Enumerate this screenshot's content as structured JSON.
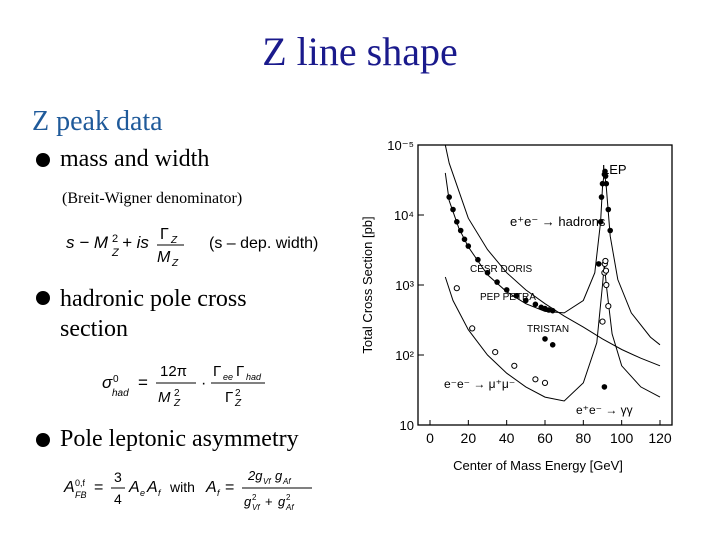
{
  "slide": {
    "title": "Z line shape",
    "subtitle": "Z peak data",
    "bullets": [
      {
        "label": "mass and width"
      },
      {
        "label": "hadronic pole cross section"
      },
      {
        "label": "Pole leptonic asymmetry"
      }
    ],
    "note": "(Breit-Wigner denominator)",
    "formulas": {
      "bw_denominator": "s − M_Z² + i s Γ_Z/M_Z",
      "bw_remark": "(s – dep. width)",
      "pole_xsec": "σ⁰_had = (12π/M_Z²)·(Γ_ee Γ_had/Γ_Z²)",
      "afb": "A⁰,f_FB = (3/4) A_e A_f  with  A_f = 2 g_Vf g_Af / (g²_Vf + g²_Af)",
      "with_word": "with"
    }
  },
  "chart_data": {
    "type": "line",
    "xlabel": "Center of Mass Energy  [GeV]",
    "ylabel": "Total Cross Section  [pb]",
    "x_ticks": [
      "0",
      "20",
      "40",
      "60",
      "80",
      "100",
      "120"
    ],
    "y_ticks": [
      "10",
      "10²",
      "10³",
      "10⁴",
      "10⁻⁵"
    ],
    "y_log": true,
    "xlim": [
      0,
      120
    ],
    "ylim": [
      10,
      100000
    ],
    "annotations": [
      "LEP",
      "e⁺e⁻ → hadrons",
      "CESR DORIS",
      "PEP PETRA",
      "TRISTAN",
      "e⁻e⁻ → μ⁺μ⁻",
      "e⁺e⁻ → γγ"
    ],
    "series": [
      {
        "values": [
          [
            8,
            40000
          ],
          [
            10,
            16000
          ],
          [
            15,
            6500
          ],
          [
            20,
            3500
          ],
          [
            30,
            1400
          ],
          [
            40,
            800
          ],
          [
            50,
            540
          ],
          [
            60,
            420
          ],
          [
            70,
            400
          ],
          [
            80,
            600
          ],
          [
            86,
            1500
          ],
          [
            89,
            8000
          ],
          [
            90,
            25000
          ],
          [
            91,
            42000
          ],
          [
            92,
            25000
          ],
          [
            94,
            5000
          ],
          [
            98,
            1200
          ],
          [
            105,
            400
          ],
          [
            115,
            180
          ],
          [
            120,
            140
          ]
        ]
      },
      {
        "values": [
          [
            8,
            1300
          ],
          [
            12,
            600
          ],
          [
            20,
            230
          ],
          [
            30,
            100
          ],
          [
            40,
            55
          ],
          [
            50,
            35
          ],
          [
            60,
            25
          ],
          [
            70,
            22
          ],
          [
            80,
            40
          ],
          [
            87,
            150
          ],
          [
            90,
            1000
          ],
          [
            91,
            2000
          ],
          [
            92,
            1000
          ],
          [
            95,
            200
          ],
          [
            100,
            70
          ],
          [
            110,
            35
          ],
          [
            120,
            25
          ]
        ]
      },
      {
        "values": [
          [
            8,
            100000
          ],
          [
            10,
            55000
          ],
          [
            20,
            9000
          ],
          [
            30,
            3200
          ],
          [
            40,
            1500
          ],
          [
            50,
            850
          ],
          [
            60,
            540
          ],
          [
            70,
            360
          ],
          [
            80,
            250
          ],
          [
            90,
            170
          ],
          [
            100,
            120
          ],
          [
            110,
            90
          ],
          [
            120,
            70
          ]
        ]
      }
    ],
    "points": [
      {
        "values": [
          [
            10,
            18000
          ],
          [
            12,
            12000
          ],
          [
            14,
            8000
          ],
          [
            16,
            6000
          ],
          [
            18,
            4500
          ],
          [
            20,
            3600
          ],
          [
            25,
            2300
          ],
          [
            30,
            1500
          ],
          [
            35,
            1100
          ],
          [
            40,
            850
          ],
          [
            45,
            700
          ],
          [
            50,
            600
          ],
          [
            55,
            530
          ],
          [
            58,
            480
          ],
          [
            60,
            460
          ],
          [
            62,
            440
          ],
          [
            64,
            430
          ],
          [
            88,
            2000
          ],
          [
            89,
            8000
          ],
          [
            89.5,
            18000
          ],
          [
            90,
            28000
          ],
          [
            91,
            38000
          ],
          [
            91.3,
            42000
          ],
          [
            91.6,
            36000
          ],
          [
            92,
            28000
          ],
          [
            93,
            12000
          ],
          [
            94,
            6000
          ]
        ]
      },
      {
        "values": [
          [
            14,
            900
          ],
          [
            22,
            240
          ],
          [
            34,
            110
          ],
          [
            44,
            70
          ],
          [
            55,
            45
          ],
          [
            60,
            40
          ],
          [
            90,
            300
          ],
          [
            91,
            1500
          ],
          [
            91.2,
            2000
          ],
          [
            91.5,
            2200
          ],
          [
            91.8,
            1600
          ],
          [
            92,
            1000
          ],
          [
            93,
            500
          ]
        ]
      },
      {
        "values": [
          [
            60,
            170
          ],
          [
            64,
            140
          ],
          [
            91,
            35
          ]
        ]
      }
    ]
  }
}
